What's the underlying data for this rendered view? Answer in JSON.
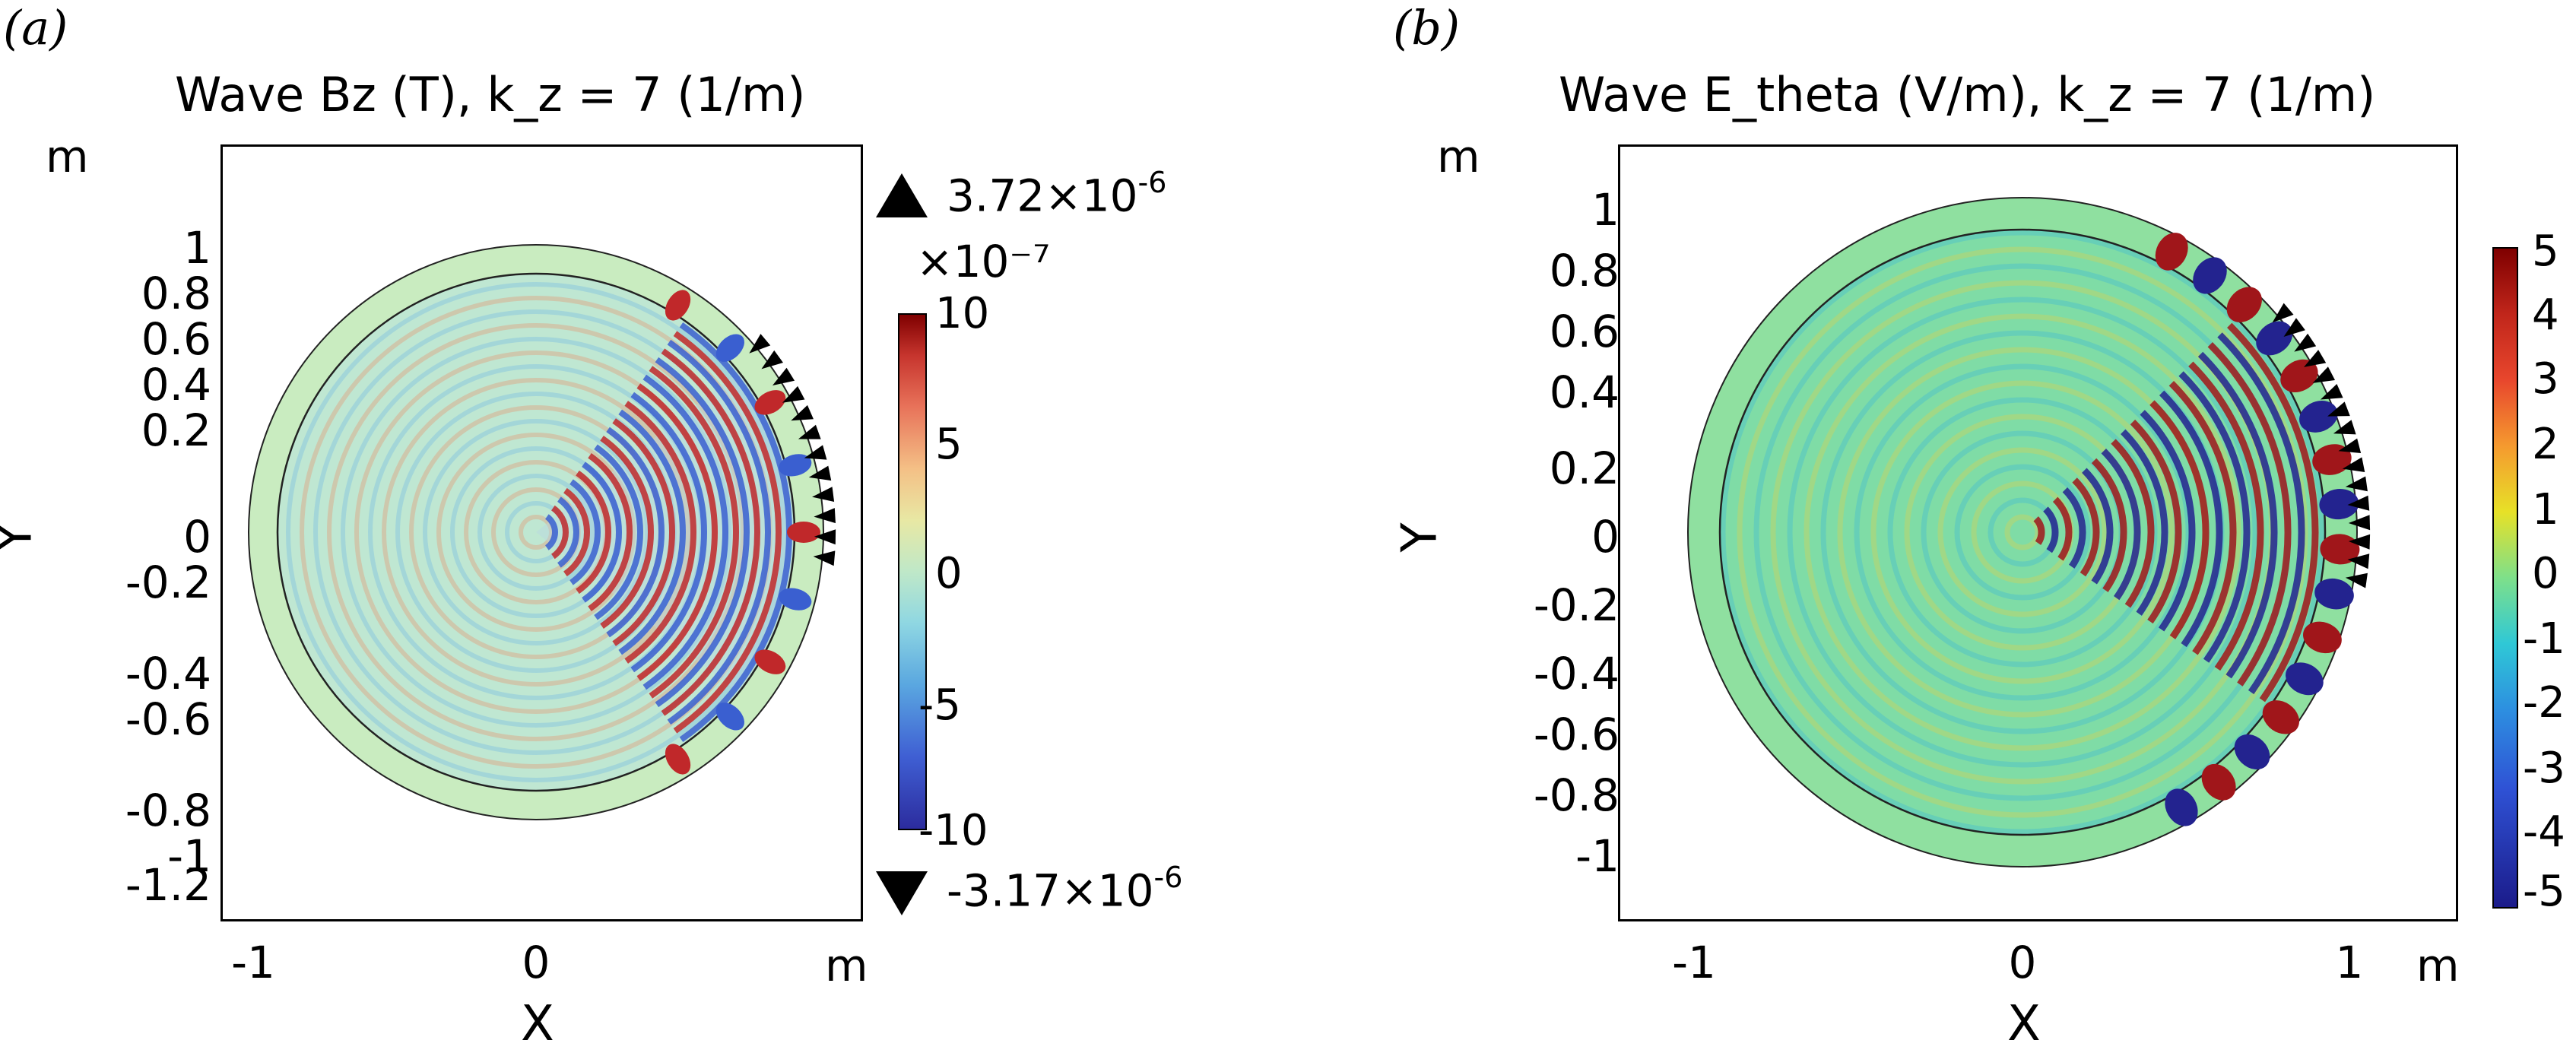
{
  "panels": [
    {
      "letter": "(a)",
      "title": "Wave Bz (T), k_z = 7 (1/m)",
      "unit_y": "m",
      "unit_x": "m",
      "xlabel": "X",
      "ylabel": "Y",
      "yticks": [
        "1",
        "0.8",
        "0.6",
        "0.4",
        "0.2",
        "0",
        "-0.2",
        "-0.4",
        "-0.6",
        "-0.8",
        "-1",
        "-1.2"
      ],
      "xticks": [
        "-1",
        "0"
      ],
      "colorbar": {
        "exponent_label": "×10⁻⁷",
        "ticks": [
          "10",
          "5",
          "0",
          "-5",
          "-10"
        ],
        "max_marker": "3.72×10",
        "max_exp": "-6",
        "min_marker": "-3.17×10",
        "min_exp": "-6"
      }
    },
    {
      "letter": "(b)",
      "title": "Wave E_theta (V/m), k_z = 7 (1/m)",
      "unit_y": "m",
      "unit_x": "m",
      "xlabel": "X",
      "ylabel": "Y",
      "yticks": [
        "1",
        "0.8",
        "0.6",
        "0.4",
        "0.2",
        "0",
        "-0.2",
        "-0.4",
        "-0.6",
        "-0.8",
        "-1"
      ],
      "xticks": [
        "-1",
        "0",
        "1"
      ],
      "colorbar": {
        "ticks": [
          "5",
          "4",
          "3",
          "2",
          "1",
          "0",
          "-1",
          "-2",
          "-3",
          "-4",
          "-5"
        ]
      }
    }
  ],
  "chart_data": [
    {
      "type": "heatmap",
      "title": "Wave Bz (T), k_z = 7 (1/m)",
      "xlabel": "X",
      "ylabel": "Y",
      "x_unit": "m",
      "y_unit": "m",
      "xlim": [
        -1.05,
        1.15
      ],
      "ylim": [
        -1.35,
        1.35
      ],
      "domain": "disk radius 1 m with inner boundary at radius 0.9 m",
      "colormap": "jet",
      "color_range": [
        -10,
        10
      ],
      "color_scale_factor": "×10⁻⁷",
      "data_max": "3.72×10⁻⁶",
      "data_min": "-3.17×10⁻⁶",
      "antenna_arrows": "black arrows along right edge, X≈0.9–1.0 m"
    },
    {
      "type": "heatmap",
      "title": "Wave E_theta (V/m), k_z = 7 (1/m)",
      "xlabel": "X",
      "ylabel": "Y",
      "x_unit": "m",
      "y_unit": "m",
      "xlim": [
        -1.25,
        1.3
      ],
      "ylim": [
        -1.17,
        1.17
      ],
      "domain": "disk radius 1 m with inner boundary at radius 0.9 m",
      "colormap": "jet",
      "color_range": [
        -5,
        5
      ],
      "antenna_arrows": "black arrows along right edge, X≈0.9–1.0 m"
    }
  ]
}
